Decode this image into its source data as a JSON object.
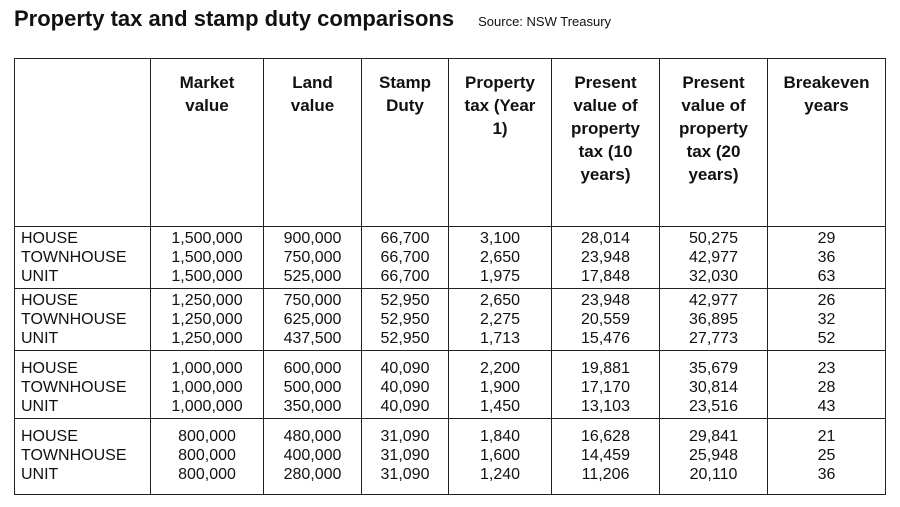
{
  "header": {
    "title": "Property tax and stamp duty comparisons",
    "source": "Source: NSW Treasury"
  },
  "table": {
    "columns": [
      "",
      "Market value",
      "Land value",
      "Stamp Duty",
      "Property tax (Year 1)",
      "Present value of property tax (10 years)",
      "Present value of property tax (20 years)",
      "Breakeven years"
    ],
    "groups": [
      [
        [
          "HOUSE",
          "1,500,000",
          "900,000",
          "66,700",
          "3,100",
          "28,014",
          "50,275",
          "29"
        ],
        [
          "TOWNHOUSE",
          "1,500,000",
          "750,000",
          "66,700",
          "2,650",
          "23,948",
          "42,977",
          "36"
        ],
        [
          "UNIT",
          "1,500,000",
          "525,000",
          "66,700",
          "1,975",
          "17,848",
          "32,030",
          "63"
        ]
      ],
      [
        [
          "HOUSE",
          "1,250,000",
          "750,000",
          "52,950",
          "2,650",
          "23,948",
          "42,977",
          "26"
        ],
        [
          "TOWNHOUSE",
          "1,250,000",
          "625,000",
          "52,950",
          "2,275",
          "20,559",
          "36,895",
          "32"
        ],
        [
          "UNIT",
          "1,250,000",
          "437,500",
          "52,950",
          "1,713",
          "15,476",
          "27,773",
          "52"
        ]
      ],
      [
        [
          "HOUSE",
          "1,000,000",
          "600,000",
          "40,090",
          "2,200",
          "19,881",
          "35,679",
          "23"
        ],
        [
          "TOWNHOUSE",
          "1,000,000",
          "500,000",
          "40,090",
          "1,900",
          "17,170",
          "30,814",
          "28"
        ],
        [
          "UNIT",
          "1,000,000",
          "350,000",
          "40,090",
          "1,450",
          "13,103",
          "23,516",
          "43"
        ]
      ],
      [
        [
          "HOUSE",
          "800,000",
          "480,000",
          "31,090",
          "1,840",
          "16,628",
          "29,841",
          "21"
        ],
        [
          "TOWNHOUSE",
          "800,000",
          "400,000",
          "31,090",
          "1,600",
          "14,459",
          "25,948",
          "25"
        ],
        [
          "UNIT",
          "800,000",
          "280,000",
          "31,090",
          "1,240",
          "11,206",
          "20,110",
          "36"
        ]
      ]
    ]
  }
}
